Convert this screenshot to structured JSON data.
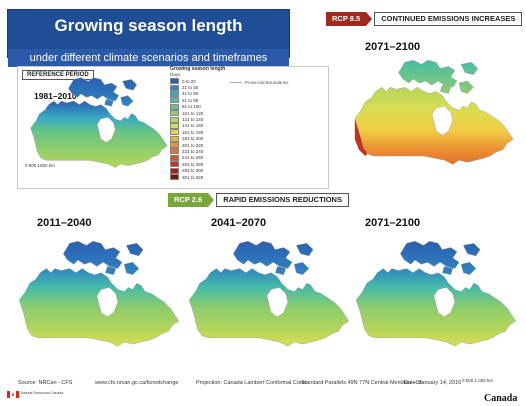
{
  "header": {
    "title": "Growing season length",
    "subtitle": "under different climate scenarios and timeframes"
  },
  "reference": {
    "tag": "REFERENCE PERIOD",
    "period": "1981–2010"
  },
  "legend": {
    "title": "Growing season length",
    "unit": "Days",
    "classes": [
      {
        "label": "0 to 20",
        "color": "#2b5fb0"
      },
      {
        "label": "21 to 40",
        "color": "#2f86c3"
      },
      {
        "label": "41 to 60",
        "color": "#38a9c4"
      },
      {
        "label": "61 to 80",
        "color": "#46bca7"
      },
      {
        "label": "81 to 100",
        "color": "#64c387"
      },
      {
        "label": "101 to 120",
        "color": "#8ccc6c"
      },
      {
        "label": "121 to 140",
        "color": "#b5d65a"
      },
      {
        "label": "141 to 160",
        "color": "#dcdc52"
      },
      {
        "label": "161 to 180",
        "color": "#f1cf45"
      },
      {
        "label": "181 to 200",
        "color": "#f1b13c"
      },
      {
        "label": "201 to 220",
        "color": "#ec9133"
      },
      {
        "label": "221 to 240",
        "color": "#e4702b"
      },
      {
        "label": "241 to 260",
        "color": "#d55025"
      },
      {
        "label": "261 to 280",
        "color": "#c2321f"
      },
      {
        "label": "281 to 300",
        "color": "#a61d1b"
      },
      {
        "label": "301 to 320",
        "color": "#7e1216"
      }
    ],
    "boundary_label": "Provincial Boundaries"
  },
  "rcp85": {
    "tag": "RCP 8.5",
    "label": "CONTINUED EMISSIONS INCREASES",
    "period": "2071–2100"
  },
  "rcp26": {
    "tag": "RCP 2.6",
    "label": "RAPID EMISSIONS REDUCTIONS",
    "periods": [
      "2011–2040",
      "2041–2070",
      "2071–2100"
    ]
  },
  "scale": {
    "ref_scale": "0  500 1000 km",
    "main_scale": "0    500   1,000 km"
  },
  "footer": {
    "source": "Source:   NRCan - CFS",
    "url": "www.cfs.nrcan.gc.ca/forestchange",
    "projection": "Projection: Canada Lambert Conformal Conic",
    "parallels": "Standard Parallels 49N 77N  Central Meridian: -95",
    "date": "Date: January 14, 2016",
    "wordmark": "Canada",
    "gov": "Natural Resources Canada"
  }
}
